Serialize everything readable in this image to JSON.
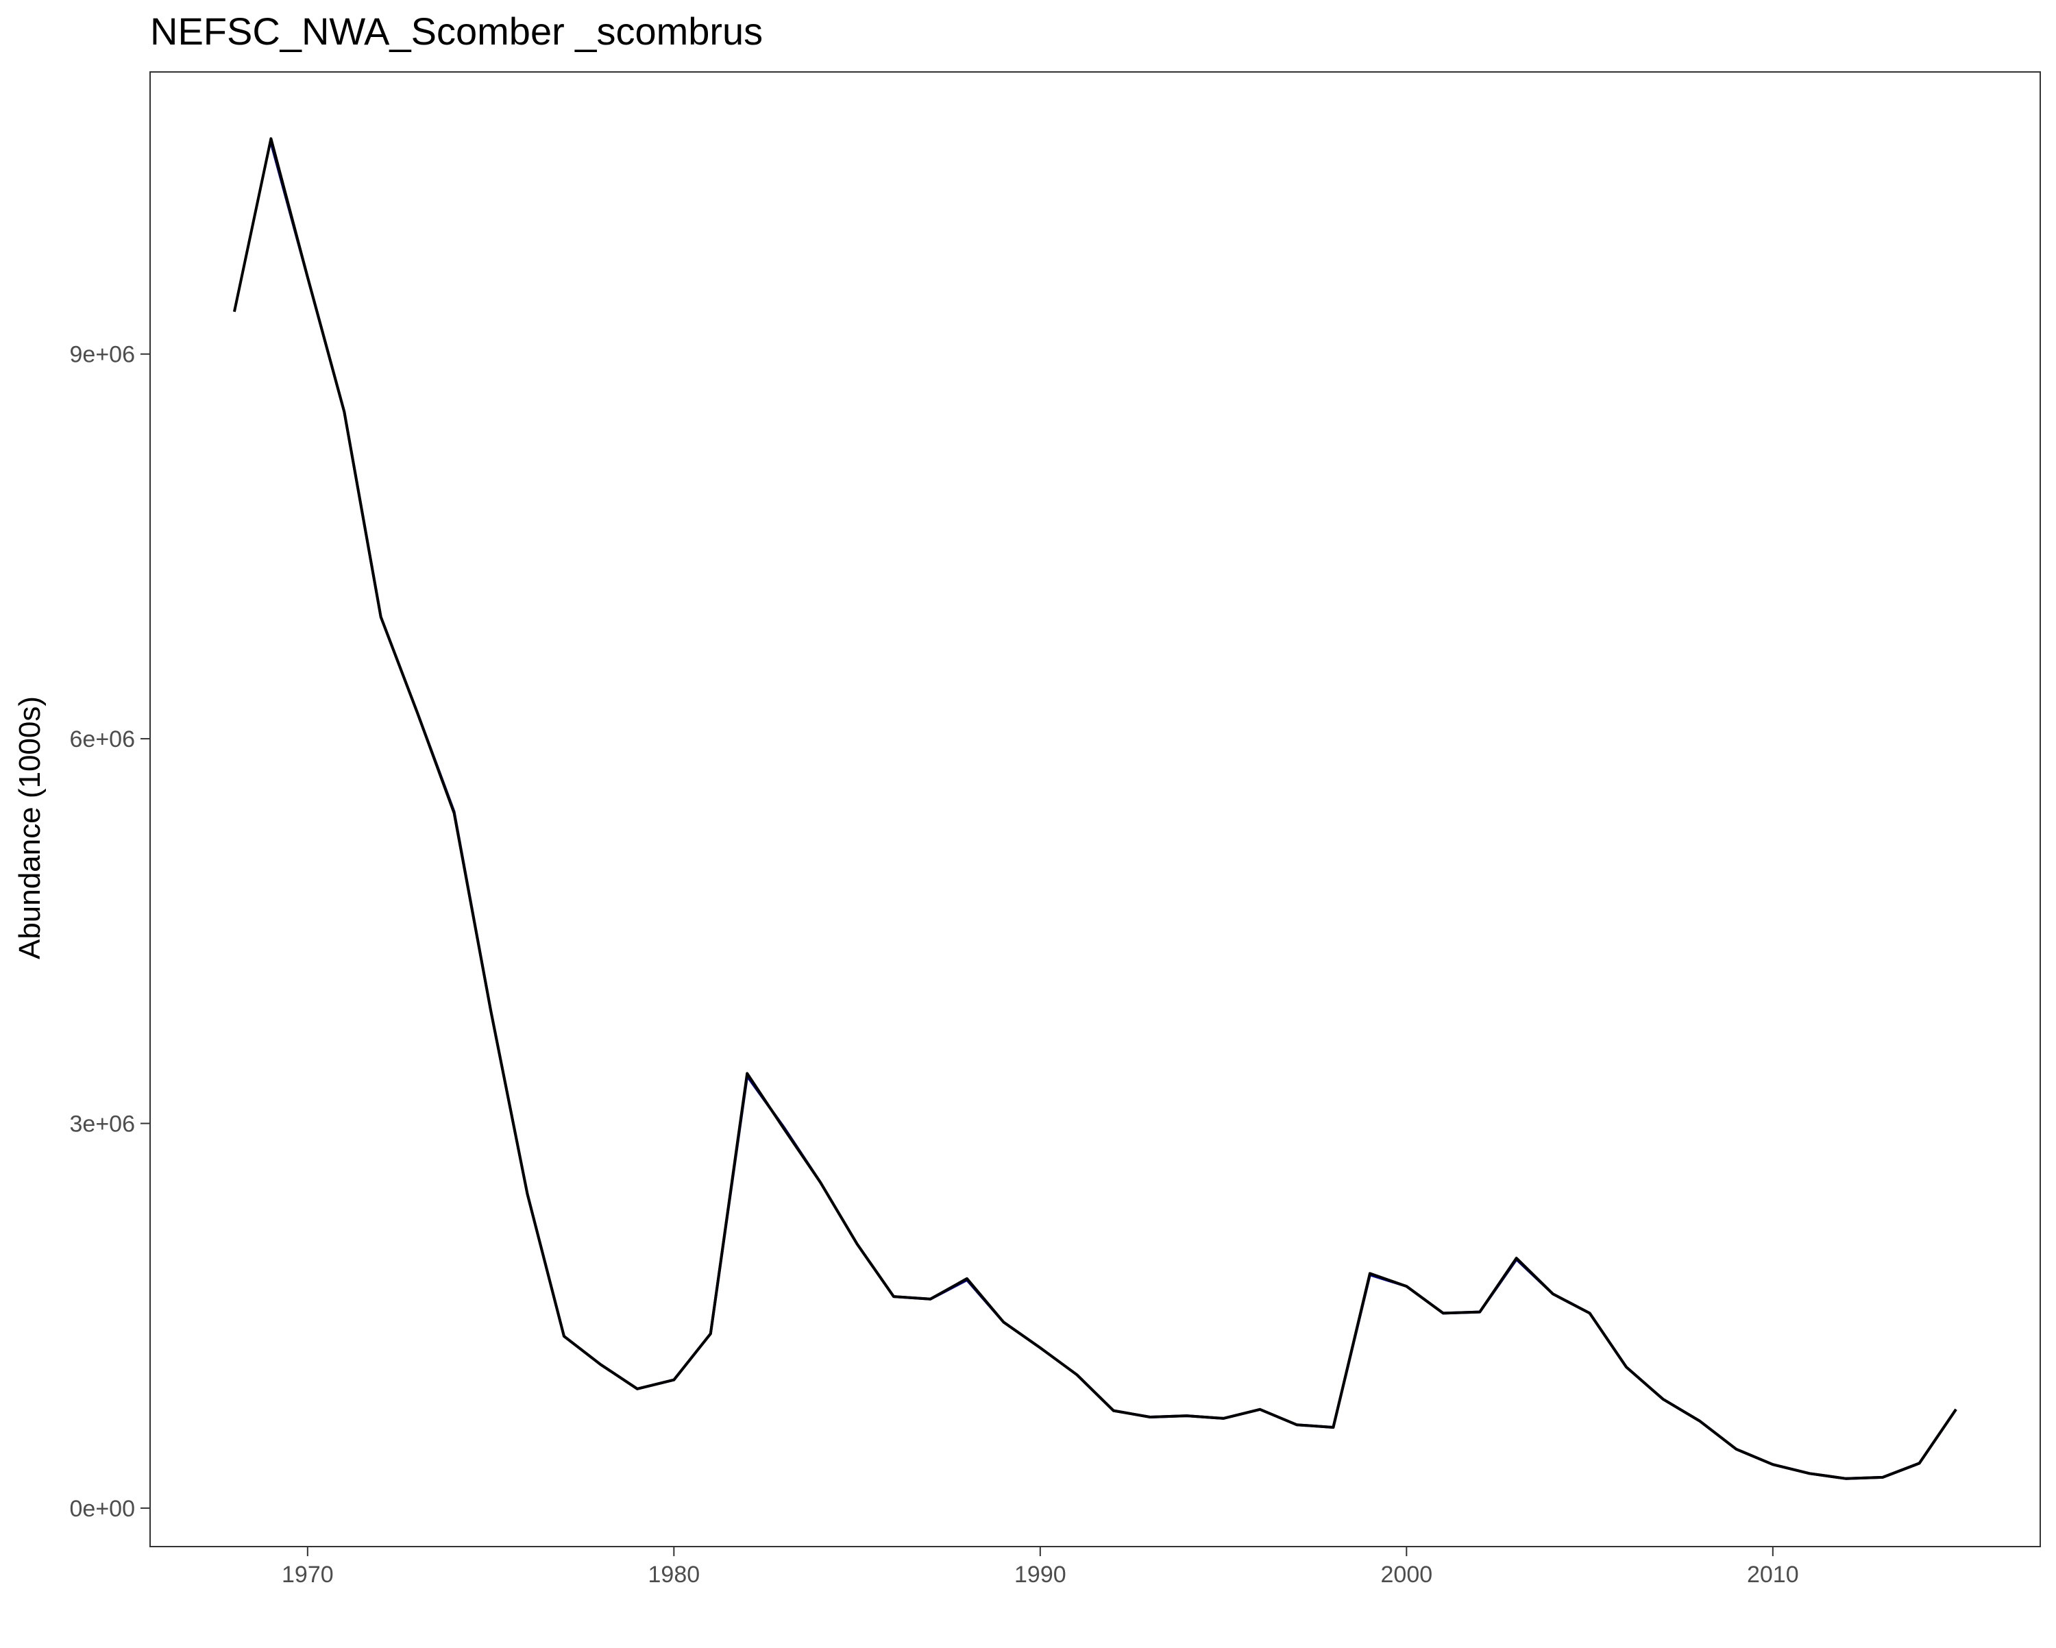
{
  "chart_data": {
    "type": "line",
    "title": "NEFSC_NWA_Scomber _scombrus",
    "xlabel": "",
    "ylabel": "Abundance (1000s)",
    "xlim": [
      1965.7,
      2017.3
    ],
    "ylim": [
      -300000,
      11200000
    ],
    "x_ticks": [
      1970,
      1980,
      1990,
      2000,
      2010
    ],
    "y_ticks": [
      0,
      3000000,
      6000000,
      9000000
    ],
    "y_tick_labels": [
      "0e+00",
      "3e+06",
      "6e+06",
      "9e+06"
    ],
    "grid": false,
    "x": [
      1968,
      1969,
      1970,
      1971,
      1972,
      1973,
      1974,
      1975,
      1976,
      1977,
      1978,
      1979,
      1980,
      1981,
      1982,
      1983,
      1984,
      1985,
      1986,
      1987,
      1988,
      1989,
      1990,
      1991,
      1992,
      1993,
      1994,
      1995,
      1996,
      1997,
      1998,
      1999,
      2000,
      2001,
      2002,
      2003,
      2004,
      2005,
      2006,
      2007,
      2008,
      2009,
      2010,
      2011,
      2012,
      2013,
      2014,
      2015
    ],
    "series": [
      {
        "color": "#00008b",
        "values": [
          null,
          10650000,
          9600000,
          8550000,
          6950000,
          6200000,
          5430000,
          3880000,
          2450000,
          1340000,
          1120000,
          930000,
          1000000,
          1360000,
          3370000,
          2970000,
          2540000,
          2060000,
          1650000,
          1630000,
          1780000,
          1450000,
          1250000,
          1040000,
          760000,
          710000,
          720000,
          700000,
          770000,
          650000,
          630000,
          1820000,
          1730000,
          1520000,
          1530000,
          1940000,
          1670000,
          1520000,
          1100000,
          850000,
          680000,
          460000,
          340000,
          270000,
          230000,
          240000,
          350000,
          770000
        ]
      },
      {
        "color": "#000000",
        "values": [
          9330000,
          10680000,
          9600000,
          8550000,
          6950000,
          6200000,
          5420000,
          3880000,
          2450000,
          1340000,
          1120000,
          930000,
          1000000,
          1360000,
          3390000,
          2960000,
          2540000,
          2060000,
          1650000,
          1630000,
          1790000,
          1450000,
          1250000,
          1040000,
          760000,
          710000,
          720000,
          700000,
          770000,
          650000,
          630000,
          1830000,
          1730000,
          1520000,
          1530000,
          1950000,
          1670000,
          1520000,
          1100000,
          850000,
          680000,
          460000,
          340000,
          270000,
          230000,
          240000,
          350000,
          770000
        ]
      }
    ]
  }
}
